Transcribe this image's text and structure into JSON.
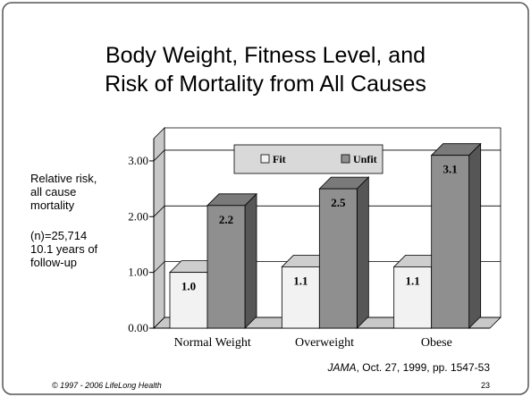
{
  "chart_data": {
    "type": "bar3d",
    "title": [
      "Body Weight, Fitness Level, and",
      "Risk of Mortality from All Causes"
    ],
    "ylabel": "Relative risk, all cause mortality",
    "annotations": [
      "(n)=25,714",
      "10.1 years of follow-up"
    ],
    "categories": [
      "Normal Weight",
      "Overweight",
      "Obese"
    ],
    "series": [
      {
        "name": "Fit",
        "color": "#f2f2f2",
        "values": [
          1.0,
          1.1,
          1.1
        ],
        "value_labels": [
          "1.0",
          "1.1",
          "1.1"
        ]
      },
      {
        "name": "Unfit",
        "color": "#8f8f8f",
        "values": [
          2.2,
          2.5,
          3.1
        ]
      }
    ],
    "ylim": [
      0,
      3.4
    ],
    "yticks": [
      {
        "value": 0,
        "label": "0.00"
      },
      {
        "value": 1,
        "label": "1.00"
      },
      {
        "value": 2,
        "label": "2.00"
      },
      {
        "value": 3,
        "label": "3.00"
      }
    ],
    "grid": true,
    "source": {
      "journal": "JAMA",
      "citation": ", Oct. 27, 1999, pp. 1547-53"
    }
  },
  "footer": {
    "copyright": "© 1997 - 2006 LifeLong Health",
    "page_number": "23"
  }
}
